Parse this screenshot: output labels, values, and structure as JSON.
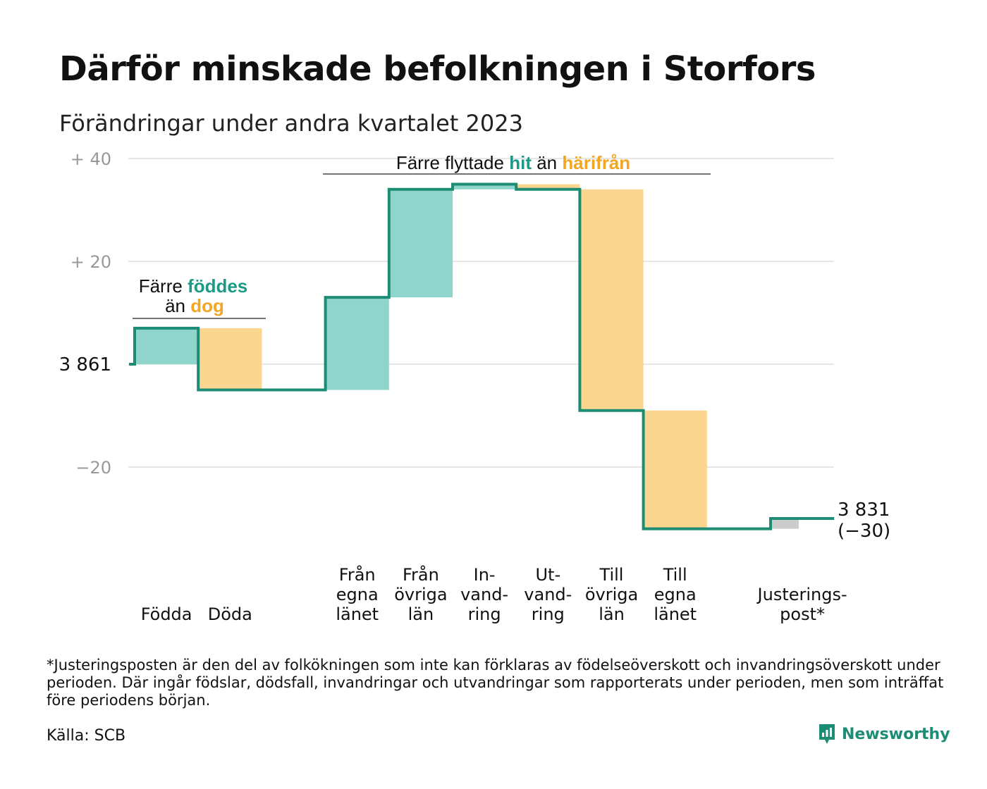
{
  "title": "Därför minskade befolkningen i Storfors",
  "subtitle": "Förändringar under andra kvartalet 2023",
  "colors": {
    "inflow": "#8fd5cb",
    "outflow": "#fbd68f",
    "adjustment": "#cccccc",
    "line": "#1c8c74",
    "teal_text": "#1c9a86",
    "orange_text": "#f2a623",
    "grid": "#dddddd",
    "tick": "#999999"
  },
  "chart_data": {
    "type": "waterfall",
    "start_value": 3861,
    "end_value": 3831,
    "y_ticks": [
      {
        "value": 40,
        "label": "+  40"
      },
      {
        "value": 20,
        "label": "+  20"
      },
      {
        "value": 0,
        "label": "3  861"
      },
      {
        "value": -20,
        "label": "−20"
      }
    ],
    "ylim": [
      -34,
      40
    ],
    "steps": [
      {
        "label_lines": [
          "Födda"
        ],
        "delta": 7,
        "kind": "inflow"
      },
      {
        "label_lines": [
          "Döda"
        ],
        "delta": -12,
        "kind": "outflow"
      },
      {
        "label_lines": [],
        "delta": 0,
        "kind": "gap"
      },
      {
        "label_lines": [
          "Från",
          "egna",
          "länet"
        ],
        "delta": 18,
        "kind": "inflow"
      },
      {
        "label_lines": [
          "Från",
          "övriga",
          "län"
        ],
        "delta": 21,
        "kind": "inflow"
      },
      {
        "label_lines": [
          "In-",
          "vand-",
          "ring"
        ],
        "delta": 1,
        "kind": "inflow"
      },
      {
        "label_lines": [
          "Ut-",
          "vand-",
          "ring"
        ],
        "delta": -1,
        "kind": "outflow"
      },
      {
        "label_lines": [
          "Till",
          "övriga",
          "län"
        ],
        "delta": -43,
        "kind": "outflow"
      },
      {
        "label_lines": [
          "Till",
          "egna",
          "länet"
        ],
        "delta": -23,
        "kind": "outflow"
      },
      {
        "label_lines": [],
        "delta": 0,
        "kind": "gap"
      },
      {
        "label_lines": [
          "Justerings-",
          "post*"
        ],
        "delta": 2,
        "kind": "adjustment"
      }
    ],
    "end_label": {
      "line1": "3 831",
      "line2": "(−30)"
    },
    "annotations": {
      "births": {
        "prefix": "Färre ",
        "highlight1": "föddes",
        "middle": "än ",
        "highlight2": "dog"
      },
      "migration": {
        "prefix": "Färre flyttade ",
        "highlight1": "hit",
        "middle": " än ",
        "highlight2": "härifrån"
      }
    }
  },
  "footnote": "*Justeringsposten är den del av folkökningen som inte kan förklaras av födelseöverskott och invandringsöverskott under perioden. Där ingår födslar, dödsfall, invandringar och utvandringar som rapporterats under perioden, men som inträffat före periodens början.",
  "source": "Källa: SCB",
  "brand": {
    "name": "Newsworthy",
    "icon": "newsworthy-logo-icon"
  }
}
